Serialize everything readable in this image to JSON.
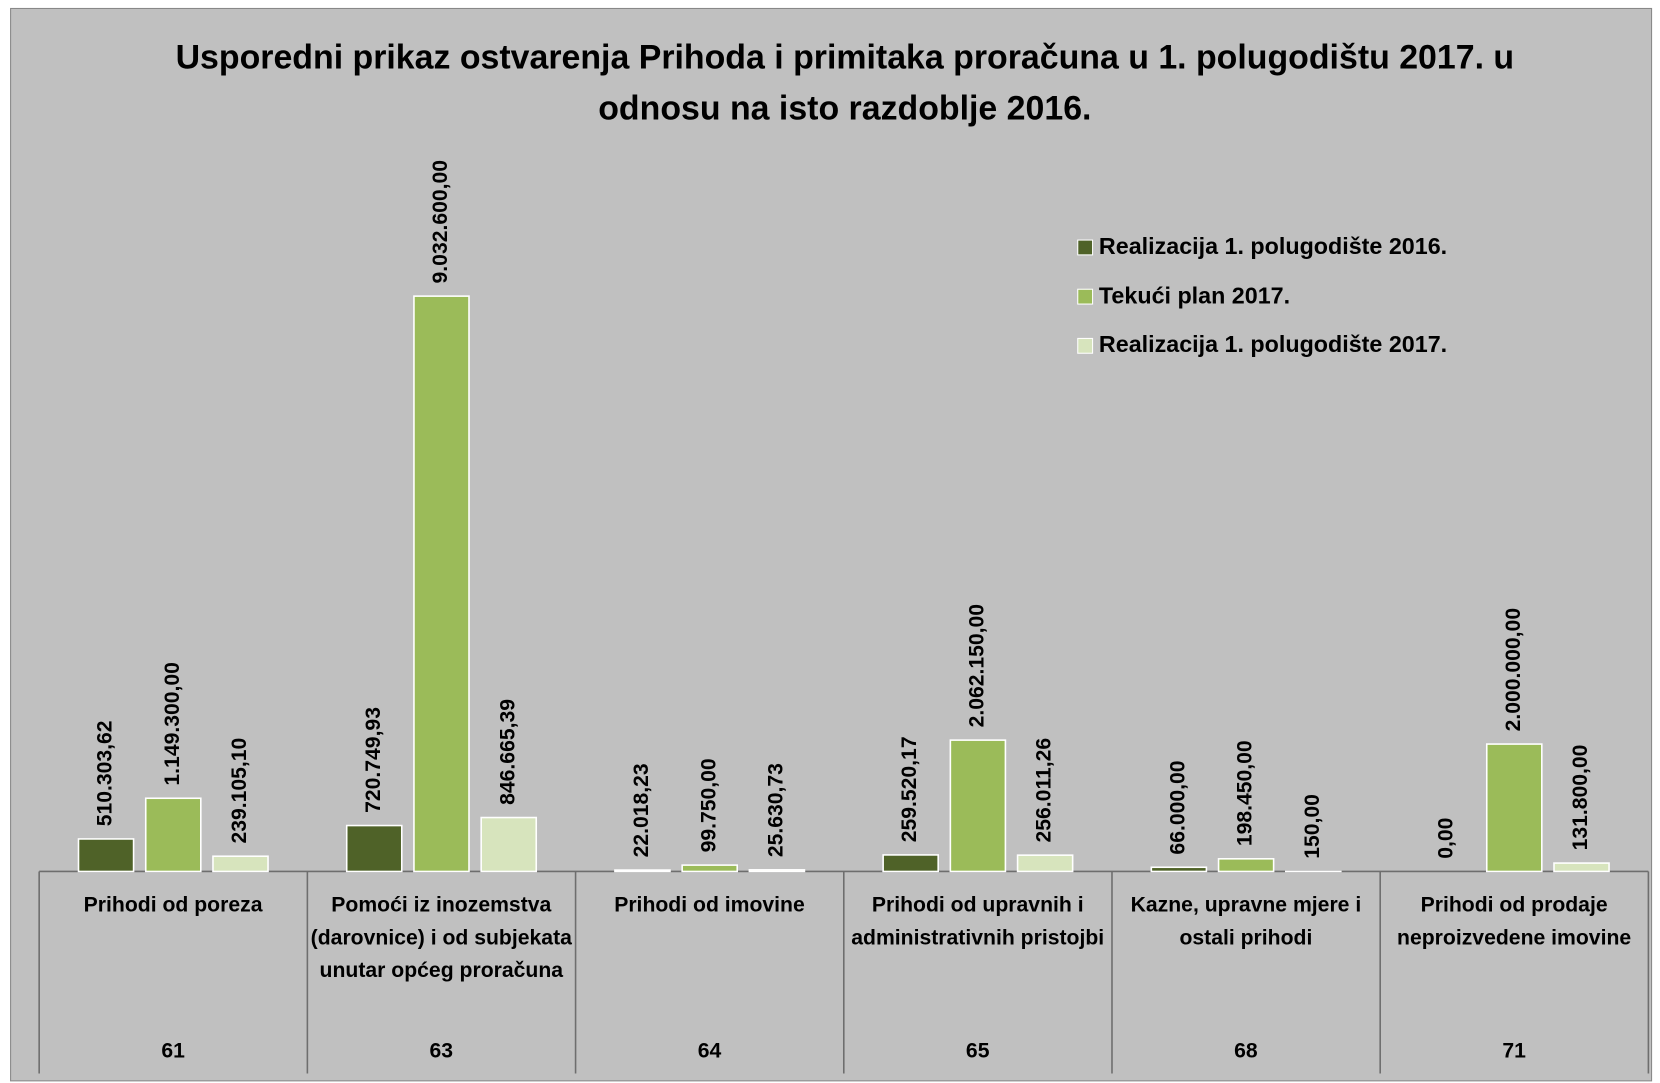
{
  "chart_data": {
    "type": "bar",
    "title": "Usporedni prikaz ostvarenja Prihoda i primitaka proračuna u 1. polugodištu 2017. u odnosu na isto razdoblje 2016.",
    "categories": [
      "Prihodi od poreza",
      "Pomoći iz inozemstva (darovnice) i od subjekata unutar općeg proračuna",
      "Prihodi od imovine",
      "Prihodi od upravnih i administrativnih pristojbi",
      "Kazne, upravne mjere i ostali prihodi",
      "Prihodi od prodaje neproizvedene imovine"
    ],
    "category_codes": [
      "61",
      "63",
      "64",
      "65",
      "68",
      "71"
    ],
    "series": [
      {
        "name": "Realizacija 1. polugodište 2016.",
        "color": "#4f6228",
        "values": [
          510303.62,
          720749.93,
          22018.23,
          259520.17,
          66000.0,
          0
        ],
        "value_labels": [
          "510.303,62",
          "720.749,93",
          "22.018,23",
          "259.520,17",
          "66.000,00",
          "0,00"
        ]
      },
      {
        "name": "Tekući plan 2017.",
        "color": "#9bbb59",
        "values": [
          1149300.0,
          9032600.0,
          99750.0,
          2062150.0,
          198450.0,
          2000000.0
        ],
        "value_labels": [
          "1.149.300,00",
          "9.032.600,00",
          "99.750,00",
          "2.062.150,00",
          "198.450,00",
          "2.000.000,00"
        ]
      },
      {
        "name": "Realizacija 1. polugodište 2017.",
        "color": "#d7e4bd",
        "values": [
          239105.1,
          846665.39,
          25630.73,
          256011.26,
          150.0,
          131800.0
        ],
        "value_labels": [
          "239.105,10",
          "846.665,39",
          "25.630,73",
          "256.011,26",
          "150,00",
          "131.800,00"
        ]
      }
    ],
    "legend": "upper right"
  }
}
